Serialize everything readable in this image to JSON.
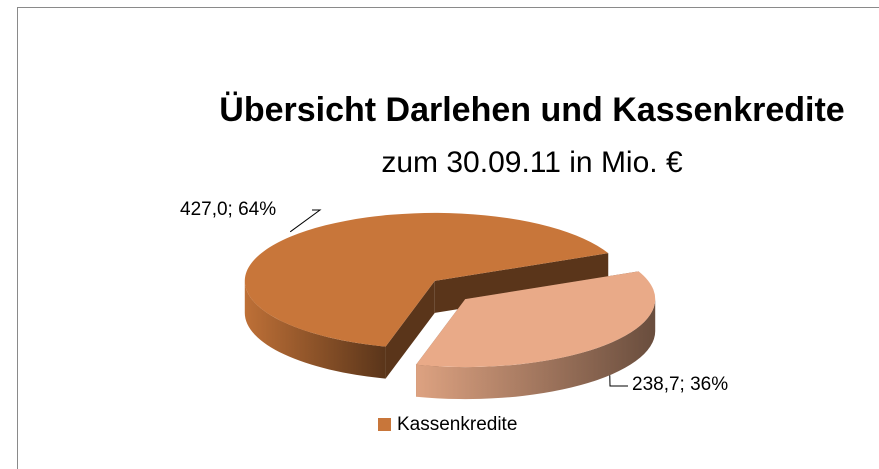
{
  "chart_data": {
    "type": "pie",
    "title": "Übersicht Darlehen und Kassenkredite",
    "subtitle": "zum 30.09.11 in Mio. €",
    "categories": [
      "Kassenkredite",
      null
    ],
    "values": [
      427.0,
      238.7
    ],
    "value_labels": [
      "427,0; 64%",
      "238,7; 36%"
    ],
    "colors": [
      "#c8763a",
      "#e9aa88"
    ],
    "legend": "bottom"
  }
}
